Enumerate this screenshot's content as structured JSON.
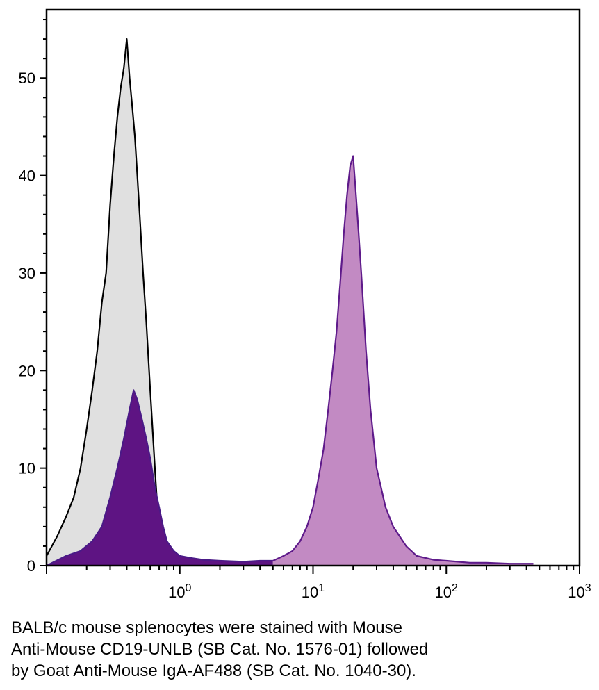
{
  "chart_data": {
    "type": "area",
    "x_scale": "log",
    "xlim": [
      0.1,
      1000
    ],
    "ylim": [
      0,
      57
    ],
    "x_ticks": [
      {
        "value": 1,
        "base": "10",
        "exp": "0"
      },
      {
        "value": 10,
        "base": "10",
        "exp": "1"
      },
      {
        "value": 100,
        "base": "10",
        "exp": "2"
      },
      {
        "value": 1000,
        "base": "10",
        "exp": "3"
      }
    ],
    "y_ticks": [
      0,
      10,
      20,
      30,
      40,
      50
    ],
    "grid": false,
    "series": [
      {
        "fill": "#e0e0e0",
        "stroke": "#000000",
        "x": [
          0.1,
          0.12,
          0.14,
          0.16,
          0.18,
          0.2,
          0.22,
          0.24,
          0.26,
          0.28,
          0.3,
          0.32,
          0.34,
          0.36,
          0.38,
          0.4,
          0.42,
          0.44,
          0.46,
          0.48,
          0.5,
          0.53,
          0.56,
          0.6,
          0.65,
          0.7,
          0.8
        ],
        "y": [
          1,
          3,
          5,
          7,
          10,
          14,
          18,
          22,
          27,
          30,
          37,
          42,
          46,
          49,
          51,
          54,
          50,
          47,
          44,
          40,
          36,
          30,
          25,
          18,
          10,
          3,
          0
        ]
      },
      {
        "fill": "#5e1483",
        "stroke": "#4a1a87",
        "x": [
          0.1,
          0.14,
          0.18,
          0.22,
          0.26,
          0.3,
          0.34,
          0.38,
          0.42,
          0.45,
          0.48,
          0.52,
          0.56,
          0.6,
          0.65,
          0.7,
          0.75,
          0.8,
          0.9,
          1.0,
          1.2,
          1.5,
          2.0,
          3.0,
          4.0,
          5.0
        ],
        "y": [
          0,
          1,
          1.5,
          2.5,
          4,
          7,
          10,
          13,
          16,
          18,
          17,
          15,
          13,
          11,
          8,
          6,
          4,
          2.5,
          1.5,
          1,
          0.8,
          0.6,
          0.5,
          0.4,
          0.5,
          0.5
        ]
      },
      {
        "fill": "#c28ac3",
        "stroke": "#5e1a8a",
        "x": [
          5.0,
          6.0,
          7.0,
          8.0,
          9.0,
          10.0,
          11.0,
          12.0,
          13.0,
          14.0,
          15.0,
          16.0,
          17.0,
          18.0,
          19.0,
          20.0,
          21.0,
          22.0,
          23.0,
          25.0,
          27.0,
          30.0,
          35.0,
          40.0,
          50.0,
          60.0,
          80.0,
          100.0,
          150.0,
          200.0,
          300.0,
          450.0
        ],
        "y": [
          0.5,
          1,
          1.5,
          2.5,
          4,
          6,
          9,
          12,
          16,
          20,
          24,
          29,
          34,
          38,
          41,
          42,
          38,
          34,
          30,
          22,
          16,
          10,
          6,
          4,
          2,
          1,
          0.6,
          0.5,
          0.3,
          0.3,
          0.2,
          0.2
        ]
      }
    ]
  },
  "caption": {
    "lines": [
      "BALB/c mouse splenocytes were stained with Mouse",
      "Anti-Mouse CD19-UNLB (SB Cat. No. 1576-01) followed",
      "by Goat Anti-Mouse IgA-AF488 (SB Cat. No. 1040-30)."
    ]
  }
}
